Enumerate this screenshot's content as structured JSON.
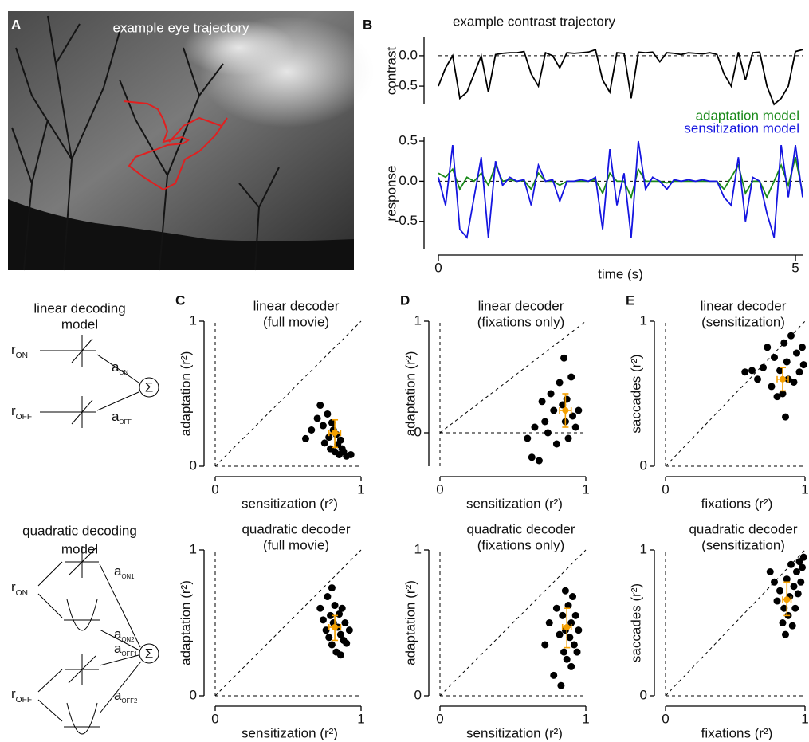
{
  "panel_a": {
    "letter": "A",
    "title": "example eye trajectory"
  },
  "diagrams": [
    {
      "title": [
        "linear decoding",
        "model"
      ],
      "inputs": [
        {
          "main": "r",
          "sub": "ON"
        },
        {
          "main": "r",
          "sub": "OFF"
        }
      ],
      "weights": [
        {
          "main": "a",
          "sub": "ON"
        },
        {
          "main": "a",
          "sub": "OFF"
        }
      ],
      "sum": "Σ"
    },
    {
      "title": [
        "quadratic decoding",
        "model"
      ],
      "inputs": [
        {
          "main": "r",
          "sub": "ON"
        },
        {
          "main": "r",
          "sub": "OFF"
        }
      ],
      "weights": [
        {
          "main": "a",
          "sub": "ON1"
        },
        {
          "main": "a",
          "sub": "ON2"
        },
        {
          "main": "a",
          "sub": "OFF1"
        },
        {
          "main": "a",
          "sub": "OFF2"
        }
      ],
      "sum": "Σ"
    }
  ],
  "chart_data": [
    {
      "type": "line",
      "letter": "B",
      "title": "example contrast trajectory",
      "ylabel": "contrast",
      "x": [
        0,
        0.1,
        0.2,
        0.3,
        0.4,
        0.5,
        0.6,
        0.7,
        0.8,
        0.9,
        1,
        1.1,
        1.2,
        1.3,
        1.4,
        1.5,
        1.6,
        1.7,
        1.8,
        1.9,
        2,
        2.1,
        2.2,
        2.3,
        2.4,
        2.5,
        2.6,
        2.7,
        2.8,
        2.9,
        3,
        3.1,
        3.2,
        3.3,
        3.4,
        3.5,
        3.6,
        3.7,
        3.8,
        3.9,
        4,
        4.1,
        4.2,
        4.3,
        4.4,
        4.5,
        4.6,
        4.7,
        4.8,
        4.9,
        5,
        5.1
      ],
      "series": [
        {
          "name": "contrast",
          "color": "#000000",
          "values": [
            -0.5,
            -0.2,
            0.0,
            -0.7,
            -0.6,
            -0.3,
            0.0,
            -0.6,
            0.02,
            0.04,
            0.05,
            0.05,
            0.07,
            -0.3,
            -0.5,
            0.05,
            0.0,
            -0.2,
            0.05,
            0.04,
            0.05,
            0.06,
            0.1,
            -0.4,
            -0.6,
            0.05,
            0.04,
            -0.7,
            0.06,
            0.05,
            0.06,
            -0.1,
            0.05,
            0.04,
            0.02,
            0.05,
            0.04,
            0.03,
            0.05,
            0.02,
            -0.3,
            -0.5,
            0.06,
            -0.4,
            0.05,
            0.06,
            -0.5,
            -0.8,
            -0.7,
            -0.5,
            0.07,
            0.1
          ]
        }
      ],
      "xlim": [
        0,
        5.1
      ],
      "ylim": [
        -0.8,
        0.3
      ],
      "yticks": [
        {
          "value": 0,
          "label": "0.0"
        },
        {
          "value": -0.5,
          "label": "-0.5"
        }
      ],
      "reference_line": 0
    },
    {
      "type": "line",
      "ylabel": "response",
      "xlabel": "time (s)",
      "x": [
        0,
        0.1,
        0.2,
        0.3,
        0.4,
        0.5,
        0.6,
        0.7,
        0.8,
        0.9,
        1,
        1.1,
        1.2,
        1.3,
        1.4,
        1.5,
        1.6,
        1.7,
        1.8,
        1.9,
        2,
        2.1,
        2.2,
        2.3,
        2.4,
        2.5,
        2.6,
        2.7,
        2.8,
        2.9,
        3,
        3.1,
        3.2,
        3.3,
        3.4,
        3.5,
        3.6,
        3.7,
        3.8,
        3.9,
        4,
        4.1,
        4.2,
        4.3,
        4.4,
        4.5,
        4.6,
        4.7,
        4.8,
        4.9,
        5,
        5.1
      ],
      "series": [
        {
          "name": "adaptation model",
          "color": "#1a8a1a",
          "values": [
            0.1,
            0.05,
            0.15,
            -0.1,
            0.05,
            0.0,
            0.1,
            -0.05,
            0.2,
            0.0,
            0.02,
            0.0,
            0.01,
            -0.1,
            0.1,
            0.0,
            0.0,
            -0.05,
            0.0,
            0.0,
            0.0,
            0.0,
            0.02,
            -0.15,
            0.1,
            0.0,
            0.0,
            -0.2,
            0.15,
            0.0,
            0.0,
            0.0,
            -0.02,
            0.0,
            0.0,
            0.0,
            0.0,
            0.0,
            0.0,
            0.0,
            -0.1,
            0.05,
            0.2,
            -0.15,
            0.0,
            0.0,
            -0.2,
            0.0,
            0.2,
            -0.05,
            0.3,
            -0.15
          ]
        },
        {
          "name": "sensitization model",
          "color": "#1515e0",
          "values": [
            0.05,
            -0.3,
            0.45,
            -0.6,
            -0.7,
            -0.2,
            0.3,
            -0.7,
            0.25,
            -0.05,
            0.05,
            0.0,
            0.02,
            -0.3,
            0.2,
            0.0,
            0.02,
            -0.25,
            0.0,
            0.0,
            0.02,
            0.0,
            0.05,
            -0.6,
            0.4,
            -0.3,
            0.1,
            -0.7,
            0.5,
            -0.1,
            0.05,
            0.0,
            -0.1,
            0.02,
            0.0,
            0.02,
            0.0,
            0.02,
            0.0,
            0.0,
            -0.2,
            -0.3,
            0.3,
            -0.5,
            0.05,
            0.0,
            -0.4,
            -0.7,
            0.45,
            -0.2,
            0.45,
            -0.2
          ]
        }
      ],
      "xlim": [
        0,
        5.1
      ],
      "ylim": [
        -0.85,
        0.55
      ],
      "xticks": [
        0,
        5
      ],
      "yticks": [
        {
          "value": 0.5,
          "label": "0.5"
        },
        {
          "value": 0,
          "label": "0.0"
        },
        {
          "value": -0.5,
          "label": "-0.5"
        }
      ],
      "reference_line": 0,
      "legend": "top-right"
    },
    {
      "type": "scatter",
      "letter": "C",
      "title": [
        "linear decoder",
        "(full movie)"
      ],
      "xlabel": "sensitization (r²)",
      "ylabel": "adaptation (r²)",
      "x": [
        0.62,
        0.66,
        0.7,
        0.72,
        0.74,
        0.75,
        0.77,
        0.78,
        0.79,
        0.8,
        0.81,
        0.82,
        0.83,
        0.84,
        0.85,
        0.86,
        0.87,
        0.88,
        0.9,
        0.93
      ],
      "y": [
        0.19,
        0.25,
        0.33,
        0.42,
        0.28,
        0.16,
        0.36,
        0.2,
        0.12,
        0.3,
        0.25,
        0.1,
        0.22,
        0.15,
        0.08,
        0.18,
        0.12,
        0.1,
        0.07,
        0.08
      ],
      "color": "#000000",
      "summary": {
        "x": 0.82,
        "y": 0.23,
        "xerr": [
          0.78,
          0.86
        ],
        "yerr": [
          0.13,
          0.32
        ],
        "color": "#f5a000"
      },
      "xlim": [
        0,
        1
      ],
      "ylim": [
        0,
        1
      ],
      "xticks": [
        0,
        1
      ],
      "yticks": [
        0,
        1
      ],
      "diagonal": true,
      "zero_lines": true
    },
    {
      "type": "scatter",
      "letter": "D",
      "title": [
        "linear decoder",
        "(fixations only)"
      ],
      "xlabel": "sensitization (r²)",
      "ylabel": "adaptation (r²)",
      "x": [
        0.6,
        0.63,
        0.65,
        0.68,
        0.7,
        0.72,
        0.74,
        0.76,
        0.78,
        0.8,
        0.82,
        0.84,
        0.85,
        0.86,
        0.87,
        0.88,
        0.9,
        0.91,
        0.93,
        0.95
      ],
      "y": [
        -0.05,
        -0.22,
        0.05,
        -0.25,
        0.28,
        0.1,
        0.0,
        0.35,
        0.2,
        -0.1,
        0.45,
        0.25,
        0.67,
        0.1,
        0.3,
        -0.05,
        0.5,
        0.15,
        0.05,
        0.2
      ],
      "color": "#000000",
      "summary": {
        "x": 0.86,
        "y": 0.2,
        "xerr": [
          0.82,
          0.9
        ],
        "yerr": [
          0.05,
          0.35
        ],
        "color": "#f5a000"
      },
      "xlim": [
        0,
        1
      ],
      "ylim": [
        -0.3,
        1
      ],
      "xticks": [
        0,
        1
      ],
      "yticks": [
        0,
        1
      ],
      "diagonal": true,
      "zero_lines": true
    },
    {
      "type": "scatter",
      "letter": "E",
      "title": [
        "linear decoder",
        "(sensitization)"
      ],
      "xlabel": "fixations (r²)",
      "ylabel": "saccades (r²)",
      "x": [
        0.57,
        0.62,
        0.66,
        0.7,
        0.73,
        0.76,
        0.78,
        0.8,
        0.82,
        0.84,
        0.85,
        0.86,
        0.87,
        0.88,
        0.9,
        0.92,
        0.94,
        0.96,
        0.98,
        0.99
      ],
      "y": [
        0.65,
        0.66,
        0.6,
        0.68,
        0.82,
        0.55,
        0.75,
        0.48,
        0.66,
        0.5,
        0.85,
        0.34,
        0.72,
        0.6,
        0.9,
        0.58,
        0.78,
        0.65,
        0.82,
        0.7
      ],
      "color": "#000000",
      "summary": {
        "x": 0.84,
        "y": 0.6,
        "xerr": [
          0.8,
          0.88
        ],
        "yerr": [
          0.52,
          0.68
        ],
        "color": "#f5a000"
      },
      "xlim": [
        0,
        1
      ],
      "ylim": [
        0,
        1
      ],
      "xticks": [
        0,
        1
      ],
      "yticks": [
        0,
        1
      ],
      "diagonal": true,
      "zero_lines": true
    },
    {
      "type": "scatter",
      "title": [
        "quadratic decoder",
        "(full movie)"
      ],
      "xlabel": "sensitization (r²)",
      "ylabel": "adaptation (r²)",
      "x": [
        0.72,
        0.74,
        0.76,
        0.77,
        0.78,
        0.79,
        0.8,
        0.8,
        0.81,
        0.82,
        0.83,
        0.84,
        0.85,
        0.86,
        0.86,
        0.87,
        0.88,
        0.89,
        0.9,
        0.92
      ],
      "y": [
        0.6,
        0.52,
        0.45,
        0.68,
        0.4,
        0.55,
        0.74,
        0.35,
        0.5,
        0.62,
        0.3,
        0.47,
        0.56,
        0.28,
        0.42,
        0.6,
        0.38,
        0.5,
        0.36,
        0.45
      ],
      "color": "#000000",
      "summary": {
        "x": 0.82,
        "y": 0.47,
        "xerr": [
          0.78,
          0.86
        ],
        "yerr": [
          0.38,
          0.55
        ],
        "color": "#f5a000"
      },
      "xlim": [
        0,
        1
      ],
      "ylim": [
        0,
        1
      ],
      "xticks": [
        0,
        1
      ],
      "yticks": [
        0,
        1
      ],
      "diagonal": true,
      "zero_lines": true
    },
    {
      "type": "scatter",
      "title": [
        "quadratic decoder",
        "(fixations only)"
      ],
      "xlabel": "sensitization (r²)",
      "ylabel": "adaptation (r²)",
      "x": [
        0.72,
        0.75,
        0.78,
        0.8,
        0.82,
        0.83,
        0.84,
        0.85,
        0.86,
        0.86,
        0.87,
        0.88,
        0.89,
        0.9,
        0.9,
        0.91,
        0.92,
        0.93,
        0.94,
        0.95
      ],
      "y": [
        0.35,
        0.5,
        0.14,
        0.6,
        0.42,
        0.07,
        0.55,
        0.3,
        0.72,
        0.45,
        0.25,
        0.62,
        0.4,
        0.5,
        0.2,
        0.68,
        0.35,
        0.55,
        0.3,
        0.45
      ],
      "color": "#000000",
      "summary": {
        "x": 0.87,
        "y": 0.47,
        "xerr": [
          0.84,
          0.9
        ],
        "yerr": [
          0.33,
          0.6
        ],
        "color": "#f5a000"
      },
      "xlim": [
        0,
        1
      ],
      "ylim": [
        0,
        1
      ],
      "xticks": [
        0,
        1
      ],
      "yticks": [
        0,
        1
      ],
      "diagonal": true,
      "zero_lines": true
    },
    {
      "type": "scatter",
      "title": [
        "quadratic decoder",
        "(sensitization)"
      ],
      "xlabel": "fixations (r²)",
      "ylabel": "saccades (r²)",
      "x": [
        0.75,
        0.78,
        0.8,
        0.82,
        0.84,
        0.85,
        0.86,
        0.87,
        0.88,
        0.89,
        0.9,
        0.91,
        0.92,
        0.93,
        0.94,
        0.95,
        0.96,
        0.97,
        0.98,
        0.99
      ],
      "y": [
        0.85,
        0.78,
        0.65,
        0.72,
        0.5,
        0.6,
        0.42,
        0.8,
        0.55,
        0.68,
        0.9,
        0.48,
        0.75,
        0.6,
        0.85,
        0.7,
        0.92,
        0.78,
        0.88,
        0.95
      ],
      "color": "#000000",
      "summary": {
        "x": 0.87,
        "y": 0.66,
        "xerr": [
          0.84,
          0.9
        ],
        "yerr": [
          0.55,
          0.78
        ],
        "color": "#f5a000"
      },
      "xlim": [
        0,
        1
      ],
      "ylim": [
        0,
        1
      ],
      "xticks": [
        0,
        1
      ],
      "yticks": [
        0,
        1
      ],
      "diagonal": true,
      "zero_lines": true
    }
  ]
}
